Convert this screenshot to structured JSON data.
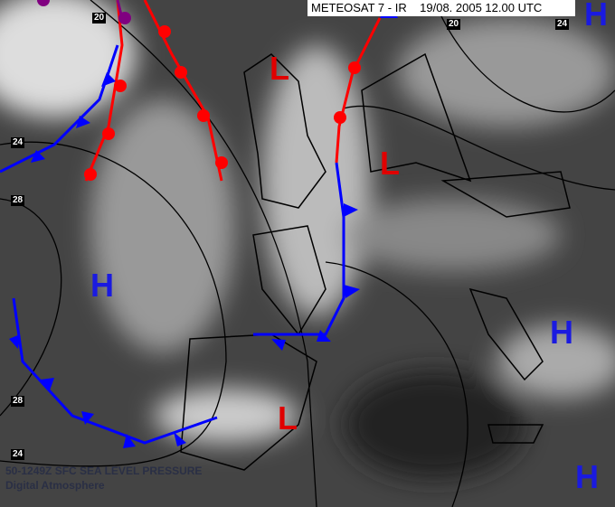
{
  "header": {
    "title": "METEOSAT 7 - IR    19/08. 2005 12.00 UTC"
  },
  "caption": {
    "line1": "50-1249Z SFC SEA LEVEL PRESSURE",
    "line2": "Digital Atmosphere"
  },
  "isobar_labels": [
    "20",
    "24",
    "28",
    "28",
    "24",
    "20",
    "24"
  ],
  "pressure_centers": [
    {
      "label": "L",
      "color": "#e00000"
    },
    {
      "label": "L",
      "color": "#e00000"
    },
    {
      "label": "L",
      "color": "#e00000"
    },
    {
      "label": "H",
      "color": "#1a1ae0"
    },
    {
      "label": "H",
      "color": "#1a1ae0"
    },
    {
      "label": "H",
      "color": "#1a1ae0"
    },
    {
      "label": "H",
      "color": "#1a1ae0"
    }
  ],
  "colors": {
    "warm_front": "#ff0000",
    "cold_front": "#0000ff",
    "occluded_front": "#800080"
  }
}
